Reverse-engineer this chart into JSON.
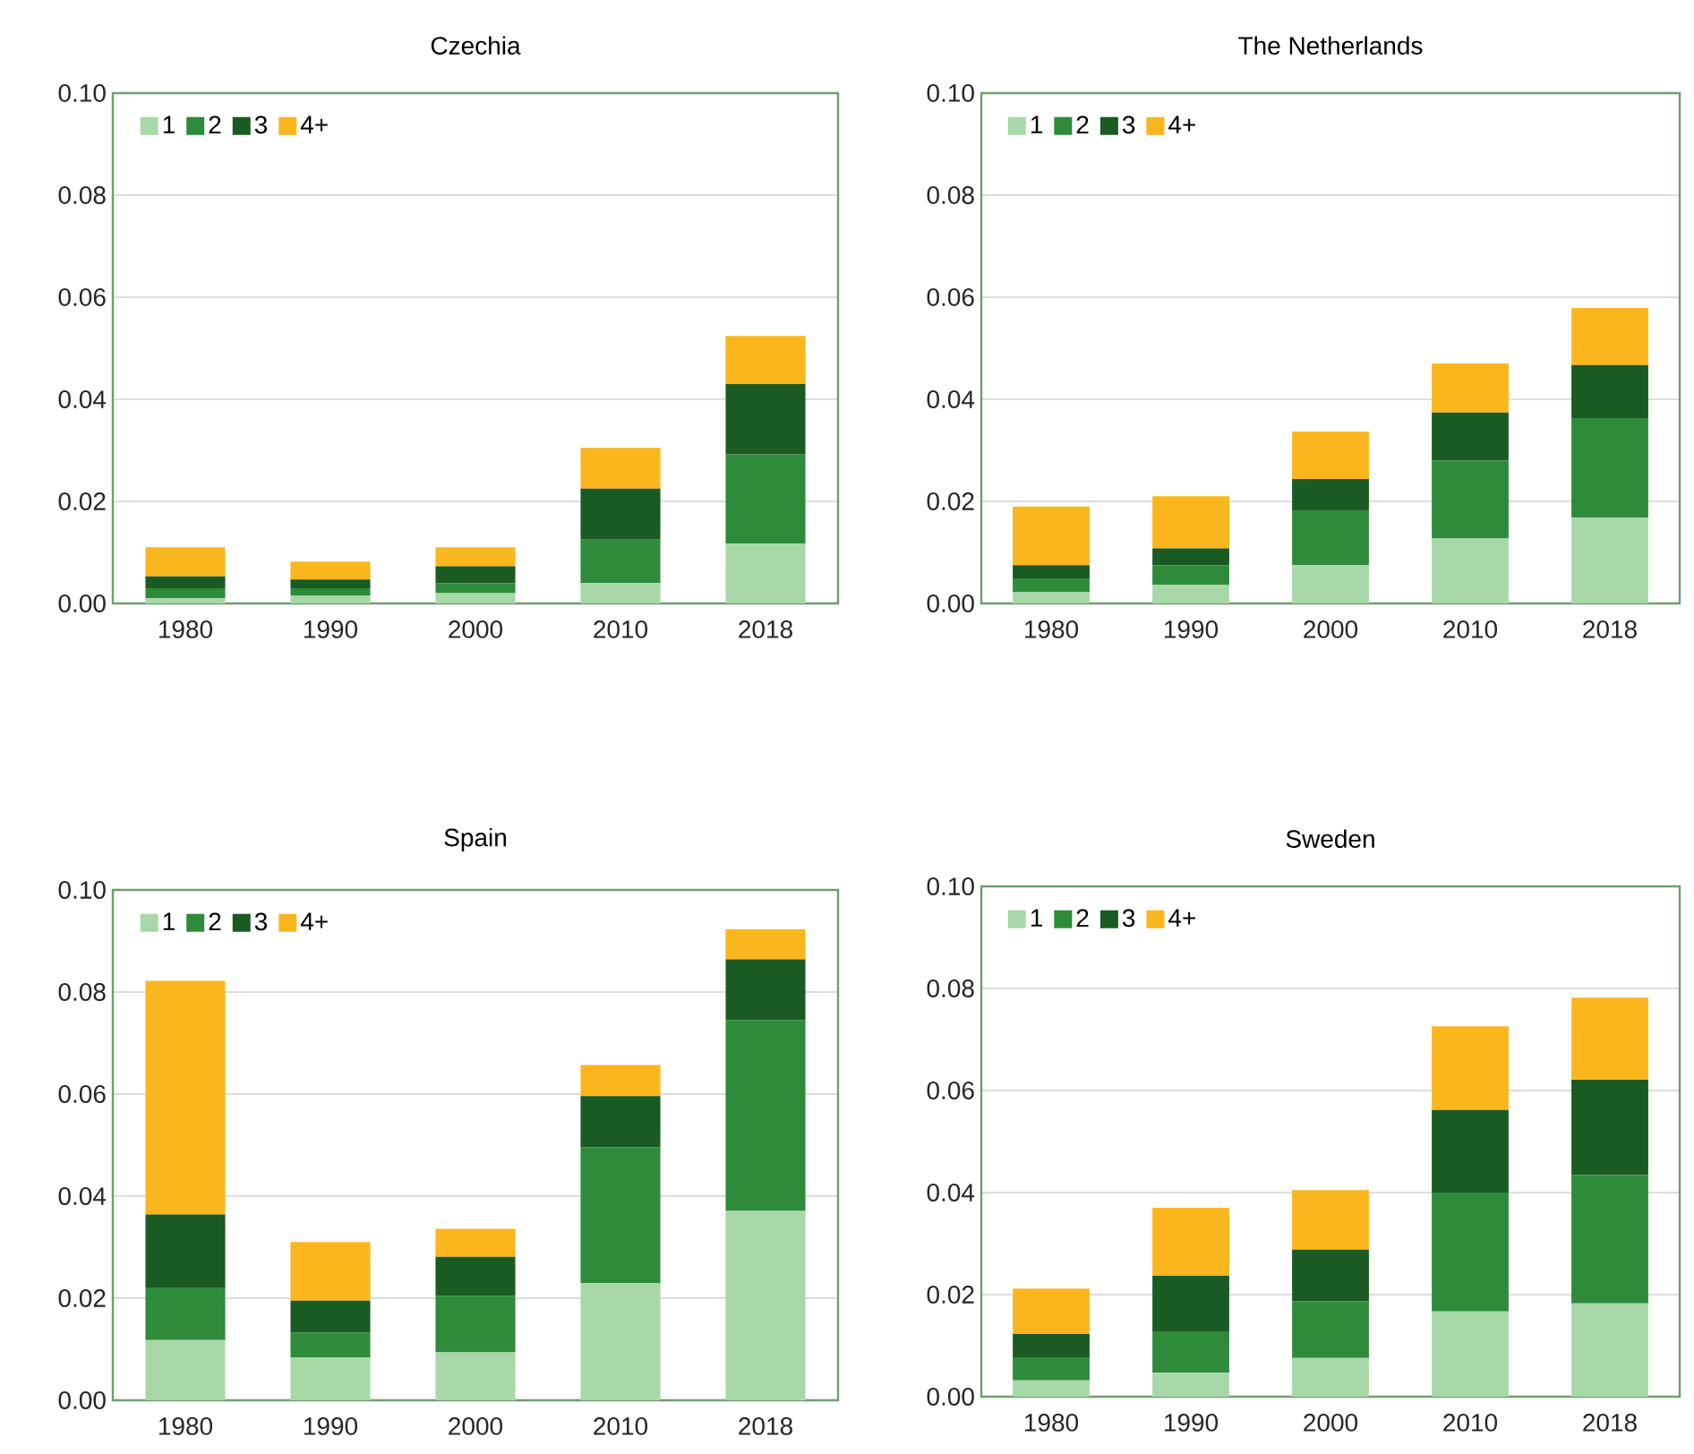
{
  "chart_data": [
    {
      "type": "bar",
      "title": "Czechia",
      "categories": [
        "1980",
        "1990",
        "2000",
        "2010",
        "2018"
      ],
      "stacked": true,
      "grid": "y",
      "legend": "top left",
      "ylim": [
        0,
        0.1
      ],
      "yticks": [
        {
          "value": 0,
          "label": "0.00"
        },
        {
          "value": 0.02,
          "label": "0.02"
        },
        {
          "value": 0.04,
          "label": "0.04"
        },
        {
          "value": 0.06,
          "label": "0.06"
        },
        {
          "value": 0.08,
          "label": "0.08"
        },
        {
          "value": 0.1,
          "label": "0.10"
        }
      ],
      "series": [
        {
          "name": "1",
          "color": "#a8d8a8",
          "values": [
            0.001,
            0.0015,
            0.002,
            0.004,
            0.0117
          ]
        },
        {
          "name": "2",
          "color": "#2e8b3a",
          "values": [
            0.002,
            0.0015,
            0.002,
            0.0085,
            0.0175
          ]
        },
        {
          "name": "3",
          "color": "#1a5a23",
          "values": [
            0.0023,
            0.0017,
            0.0033,
            0.01,
            0.0138
          ]
        },
        {
          "name": "4+",
          "color": "#fbb61d",
          "values": [
            0.0057,
            0.0035,
            0.0037,
            0.008,
            0.0094
          ]
        }
      ]
    },
    {
      "type": "bar",
      "title": "The Netherlands",
      "categories": [
        "1980",
        "1990",
        "2000",
        "2010",
        "2018"
      ],
      "stacked": true,
      "grid": "y",
      "legend": "top left",
      "ylim": [
        0,
        0.1
      ],
      "yticks": [
        {
          "value": 0,
          "label": "0.00"
        },
        {
          "value": 0.02,
          "label": "0.02"
        },
        {
          "value": 0.04,
          "label": "0.04"
        },
        {
          "value": 0.06,
          "label": "0.06"
        },
        {
          "value": 0.08,
          "label": "0.08"
        },
        {
          "value": 0.1,
          "label": "0.10"
        }
      ],
      "series": [
        {
          "name": "1",
          "color": "#a8d8a8",
          "values": [
            0.0022,
            0.0037,
            0.0075,
            0.0127,
            0.0168
          ]
        },
        {
          "name": "2",
          "color": "#2e8b3a",
          "values": [
            0.0027,
            0.0038,
            0.0106,
            0.0153,
            0.0195
          ]
        },
        {
          "name": "3",
          "color": "#1a5a23",
          "values": [
            0.0026,
            0.0033,
            0.0063,
            0.0094,
            0.0104
          ]
        },
        {
          "name": "4+",
          "color": "#fbb61d",
          "values": [
            0.0115,
            0.0102,
            0.0093,
            0.0096,
            0.0112
          ]
        }
      ]
    },
    {
      "type": "bar",
      "title": "Spain",
      "categories": [
        "1980",
        "1990",
        "2000",
        "2010",
        "2018"
      ],
      "stacked": true,
      "grid": "y",
      "legend": "top left",
      "ylim": [
        0,
        0.1
      ],
      "yticks": [
        {
          "value": 0,
          "label": "0.00"
        },
        {
          "value": 0.02,
          "label": "0.02"
        },
        {
          "value": 0.04,
          "label": "0.04"
        },
        {
          "value": 0.06,
          "label": "0.06"
        },
        {
          "value": 0.08,
          "label": "0.08"
        },
        {
          "value": 0.1,
          "label": "0.10"
        }
      ],
      "series": [
        {
          "name": "1",
          "color": "#a8d8a8",
          "values": [
            0.0118,
            0.0084,
            0.0094,
            0.023,
            0.0371
          ]
        },
        {
          "name": "2",
          "color": "#2e8b3a",
          "values": [
            0.0103,
            0.0049,
            0.0111,
            0.0266,
            0.0374
          ]
        },
        {
          "name": "3",
          "color": "#1a5a23",
          "values": [
            0.0143,
            0.0062,
            0.0076,
            0.01,
            0.0119
          ]
        },
        {
          "name": "4+",
          "color": "#fbb61d",
          "values": [
            0.0458,
            0.0115,
            0.0055,
            0.0061,
            0.0059
          ]
        }
      ]
    },
    {
      "type": "bar",
      "title": "Sweden",
      "categories": [
        "1980",
        "1990",
        "2000",
        "2010",
        "2018"
      ],
      "stacked": true,
      "grid": "y",
      "legend": "top left",
      "ylim": [
        0,
        0.1
      ],
      "yticks": [
        {
          "value": 0,
          "label": "0.00"
        },
        {
          "value": 0.02,
          "label": "0.02"
        },
        {
          "value": 0.04,
          "label": "0.04"
        },
        {
          "value": 0.06,
          "label": "0.06"
        },
        {
          "value": 0.08,
          "label": "0.08"
        },
        {
          "value": 0.1,
          "label": "0.10"
        }
      ],
      "series": [
        {
          "name": "1",
          "color": "#a8d8a8",
          "values": [
            0.0032,
            0.0047,
            0.0076,
            0.0167,
            0.0183
          ]
        },
        {
          "name": "2",
          "color": "#2e8b3a",
          "values": [
            0.0044,
            0.0081,
            0.0111,
            0.0233,
            0.0251
          ]
        },
        {
          "name": "3",
          "color": "#1a5a23",
          "values": [
            0.0047,
            0.0109,
            0.0101,
            0.0162,
            0.0187
          ]
        },
        {
          "name": "4+",
          "color": "#fbb61d",
          "values": [
            0.0089,
            0.0133,
            0.0117,
            0.0164,
            0.0161
          ]
        }
      ]
    }
  ]
}
